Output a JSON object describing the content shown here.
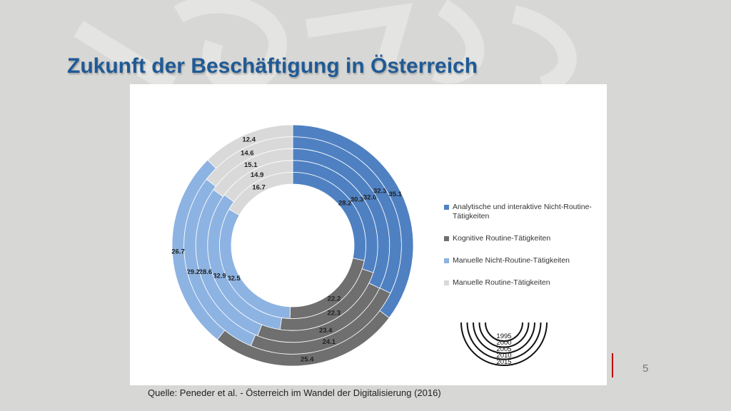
{
  "slide": {
    "title": "Zukunft der Beschäftigung in Österreich",
    "source": "Quelle: Peneder et al. - Österreich im Wandel der Digitalisierung (2016)",
    "page_number": "5"
  },
  "colors": {
    "title": "#1f5a96",
    "accent_mark": "#c00000",
    "background": "#d7d7d5"
  },
  "chart_data": {
    "type": "multi-ring-donut",
    "rings": [
      "1995",
      "2000",
      "2005",
      "2010",
      "2015"
    ],
    "series": [
      {
        "name": "Analytische und interaktive Nicht-Routine-Tätigkeiten",
        "color": "#4f81c2",
        "values": [
          28.2,
          30.3,
          32.0,
          32.3,
          35.1
        ]
      },
      {
        "name": "Kognitive  Routine-Tätigkeiten",
        "color": "#6f6f6f",
        "values": [
          22.2,
          22.3,
          23.4,
          24.1,
          25.4
        ]
      },
      {
        "name": "Manuelle  Nicht-Routine-Tätigkeiten",
        "color": "#8db3e2",
        "values": [
          32.5,
          32.9,
          28.6,
          29.2,
          26.7
        ]
      },
      {
        "name": "Manuelle  Routine-Tätigkeiten",
        "color": "#d9d9d9",
        "values": [
          16.7,
          14.9,
          15.1,
          14.6,
          12.4
        ]
      }
    ],
    "legend_position": "right"
  }
}
